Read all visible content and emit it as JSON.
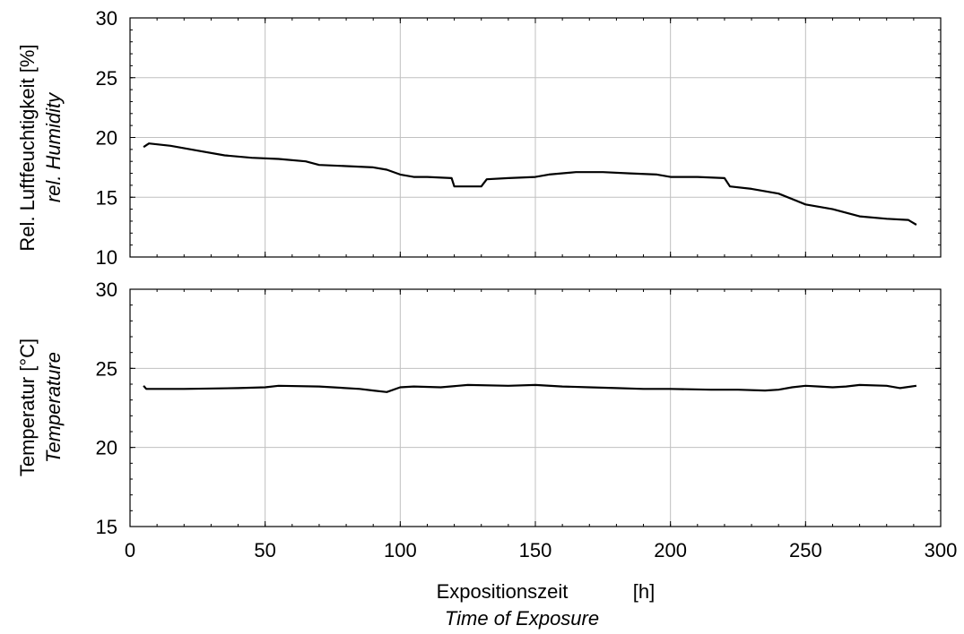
{
  "chart_data": [
    {
      "type": "line",
      "panel": "top",
      "ylabel_de": "Rel. Luftfeuchtigkeit [%]",
      "ylabel_en": "rel. Humidity",
      "ylim": [
        10,
        30
      ],
      "yticks": [
        "10",
        "15",
        "20",
        "25",
        "30"
      ],
      "xlim": [
        0,
        300
      ],
      "grid": true,
      "series": [
        {
          "x": [
            5,
            7,
            15,
            25,
            35,
            45,
            55,
            65,
            70,
            80,
            90,
            95,
            100,
            105,
            110,
            119,
            120,
            125,
            130,
            132,
            140,
            150,
            155,
            165,
            175,
            185,
            195,
            200,
            210,
            220,
            222,
            230,
            240,
            250,
            260,
            270,
            280,
            288,
            291
          ],
          "y": [
            19.2,
            19.5,
            19.3,
            18.9,
            18.5,
            18.3,
            18.2,
            18.0,
            17.7,
            17.6,
            17.5,
            17.3,
            16.9,
            16.7,
            16.7,
            16.6,
            15.9,
            15.9,
            15.9,
            16.5,
            16.6,
            16.7,
            16.9,
            17.1,
            17.1,
            17.0,
            16.9,
            16.7,
            16.7,
            16.6,
            15.9,
            15.7,
            15.3,
            14.4,
            14.0,
            13.4,
            13.2,
            13.1,
            12.7
          ]
        }
      ]
    },
    {
      "type": "line",
      "panel": "bottom",
      "ylabel_de": "Temperatur  [°C]",
      "ylabel_en": "Temperature",
      "ylim": [
        15,
        30
      ],
      "yticks": [
        "15",
        "20",
        "25",
        "30"
      ],
      "xlim": [
        0,
        300
      ],
      "xticks": [
        "0",
        "50",
        "100",
        "150",
        "200",
        "250",
        "300"
      ],
      "xlabel_de": "Expositionszeit",
      "xlabel_unit": "[h]",
      "xlabel_en": "Time of Exposure",
      "grid": true,
      "series": [
        {
          "x": [
            5,
            6,
            20,
            40,
            50,
            55,
            70,
            85,
            90,
            95,
            100,
            105,
            115,
            125,
            140,
            150,
            160,
            170,
            180,
            190,
            200,
            215,
            225,
            235,
            240,
            245,
            250,
            255,
            260,
            265,
            270,
            280,
            285,
            291
          ],
          "y": [
            23.9,
            23.7,
            23.7,
            23.75,
            23.8,
            23.9,
            23.85,
            23.7,
            23.6,
            23.5,
            23.8,
            23.85,
            23.8,
            23.95,
            23.9,
            23.95,
            23.85,
            23.8,
            23.75,
            23.7,
            23.7,
            23.65,
            23.65,
            23.6,
            23.65,
            23.8,
            23.9,
            23.85,
            23.8,
            23.85,
            23.95,
            23.9,
            23.75,
            23.9
          ]
        }
      ]
    }
  ]
}
